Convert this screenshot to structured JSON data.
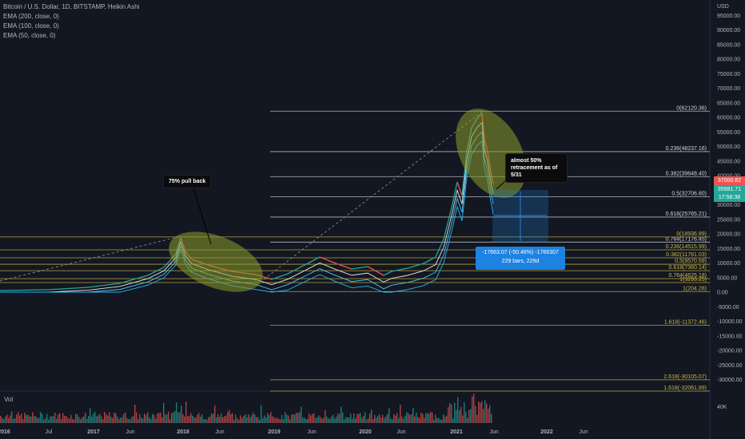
{
  "legend": {
    "symbol": "Bitcoin / U.S. Dollar, 1D, BITSTAMP, Heikin Ashi",
    "ema200": "EMA (200, close, 0)",
    "ema100": "EMA (100, close, 0)",
    "ema50": "EMA (50, close, 0)"
  },
  "axis": {
    "currency": "USD",
    "price_ticks": [
      "95000.00",
      "90000.00",
      "85000.00",
      "80000.00",
      "75000.00",
      "70000.00",
      "65000.00",
      "60000.00",
      "55000.00",
      "50000.00",
      "45000.00",
      "40000.00",
      "35000.00",
      "30000.00",
      "25000.00",
      "20000.00",
      "15000.00",
      "10000.00",
      "5000.00",
      "0.00",
      "-5000.00",
      "-10000.00",
      "-15000.00",
      "-20000.00",
      "-25000.00",
      "-30000.00"
    ],
    "time_ticks": [
      "2016",
      "Jul",
      "2017",
      "Jun",
      "2018",
      "Jun",
      "2019",
      "Jun",
      "2020",
      "Jun",
      "2021",
      "Jun",
      "2022",
      "Jun"
    ],
    "volume_tick": "40K"
  },
  "price_tags": {
    "last_price": "37000.82",
    "crosshair_price": "35981.71",
    "countdown": "17:58:38",
    "last_color": "#ef5350",
    "crosshair_color": "#26a69a"
  },
  "fib_top": [
    {
      "label": "0(62120.36)",
      "price": 62120.36
    },
    {
      "label": "0.236(48237.16)",
      "price": 48237.16
    },
    {
      "label": "0.382(39648.40)",
      "price": 39648.4
    },
    {
      "label": "0.5(32706.80)",
      "price": 32706.8
    },
    {
      "label": "0.618(25765.21)",
      "price": 25765.21
    },
    {
      "label": "0.764(17176.45)",
      "price": 17176.45
    }
  ],
  "fib_bottom": [
    {
      "label": "0(18936.89)",
      "price": 18936.89
    },
    {
      "label": "0.236(14515.99)",
      "price": 14515.99
    },
    {
      "label": "0.382(11781.03)",
      "price": 11781.03
    },
    {
      "label": "0.5(9570.59)",
      "price": 9570.59
    },
    {
      "label": "0.618(7360.14)",
      "price": 7360.14
    },
    {
      "label": "0.764(4625.18)",
      "price": 4625.18
    },
    {
      "label": "1(3293.25)",
      "price": 3293.25
    },
    {
      "label": "1(204.28)",
      "price": 204.28
    },
    {
      "label": "1.618(-11372.46)",
      "price": -11372.46
    },
    {
      "label": "2.618(-30105.07)",
      "price": -30105.07
    },
    {
      "label": "1.618(-32061.89)",
      "price": -32061.89
    }
  ],
  "annotations": {
    "pullback": "75% pull back",
    "retrace": "almost 50% retracement as of 5/31",
    "measure_line1": "-17663.07 (-50.46%) -1766307",
    "measure_line2": "229 bars, 229d"
  },
  "volume": {
    "label": "Vol"
  },
  "colors": {
    "background": "#131722",
    "up": "#26a69a",
    "down": "#ef5350",
    "fib_top_line": "#b2b5be",
    "fib_bottom_line": "#b5a33a",
    "highlight": "#8c9c2a",
    "measure": "#1e82e0"
  }
}
